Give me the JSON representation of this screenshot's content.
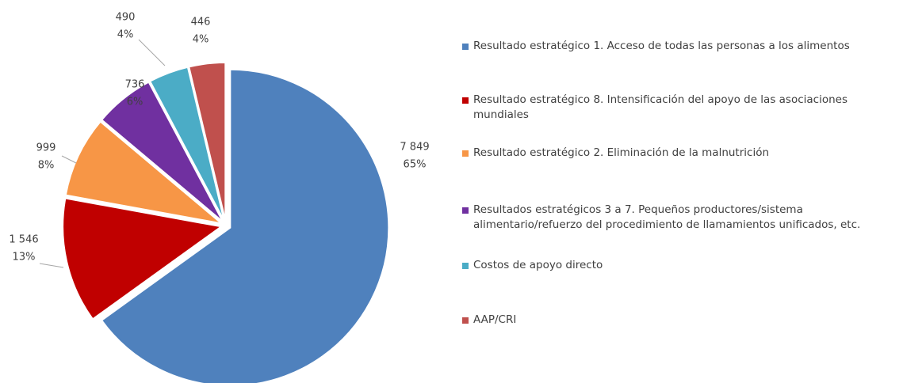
{
  "chart_data": {
    "type": "pie",
    "categories": [
      "Resultado estratégico 1. Acceso de todas las personas a los alimentos",
      "Resultado estratégico 8. Intensificación del apoyo de las asociaciones mundiales",
      "Resultado estratégico 2. Eliminación de la malnutrición",
      "Resultados estratégicos 3 a 7. Pequeños productores/sistema alimentario/refuerzo del procedimiento de llamamientos unificados, etc.",
      "Costos de apoyo directo",
      "AAP/CRI"
    ],
    "values": [
      7849,
      1546,
      999,
      736,
      490,
      446
    ],
    "value_labels": [
      "7 849",
      "1 546",
      "999",
      "736",
      "490",
      "446"
    ],
    "percents": [
      65,
      13,
      8,
      6,
      4,
      4
    ],
    "percent_labels": [
      "65%",
      "13%",
      "8%",
      "6%",
      "4%",
      "4%"
    ],
    "colors": [
      "#4f81bd",
      "#c00000",
      "#f79646",
      "#7030a0",
      "#4bacc6",
      "#c0504d"
    ]
  }
}
